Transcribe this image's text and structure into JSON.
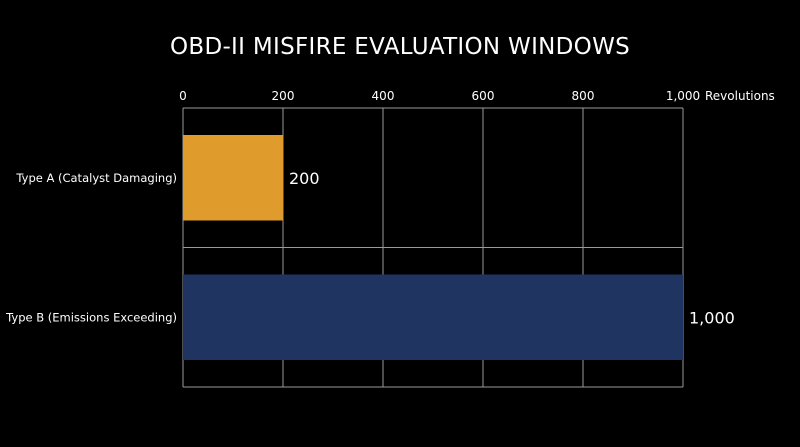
{
  "chart_data": {
    "type": "bar",
    "orientation": "horizontal",
    "title": "OBD-II MISFIRE EVALUATION WINDOWS",
    "xlabel": "Revolutions",
    "ylabel": "",
    "categories": [
      "Type A (Catalyst Damaging)",
      "Type B (Emissions Exceeding)"
    ],
    "values": [
      200,
      1000
    ],
    "value_labels": [
      "200",
      "1,000"
    ],
    "xlim": [
      0,
      1000
    ],
    "x_ticks": [
      0,
      200,
      400,
      600,
      800,
      1000
    ],
    "x_tick_labels": [
      "0",
      "200",
      "400",
      "600",
      "800",
      "1,000"
    ],
    "axis_position": "top",
    "grid": true,
    "legend": "none",
    "colors": {
      "background": "#000000",
      "bar_a": "#e09b2d",
      "bar_b": "#1f3461",
      "grid": "#9a9a9a",
      "text": "#ffffff"
    }
  }
}
